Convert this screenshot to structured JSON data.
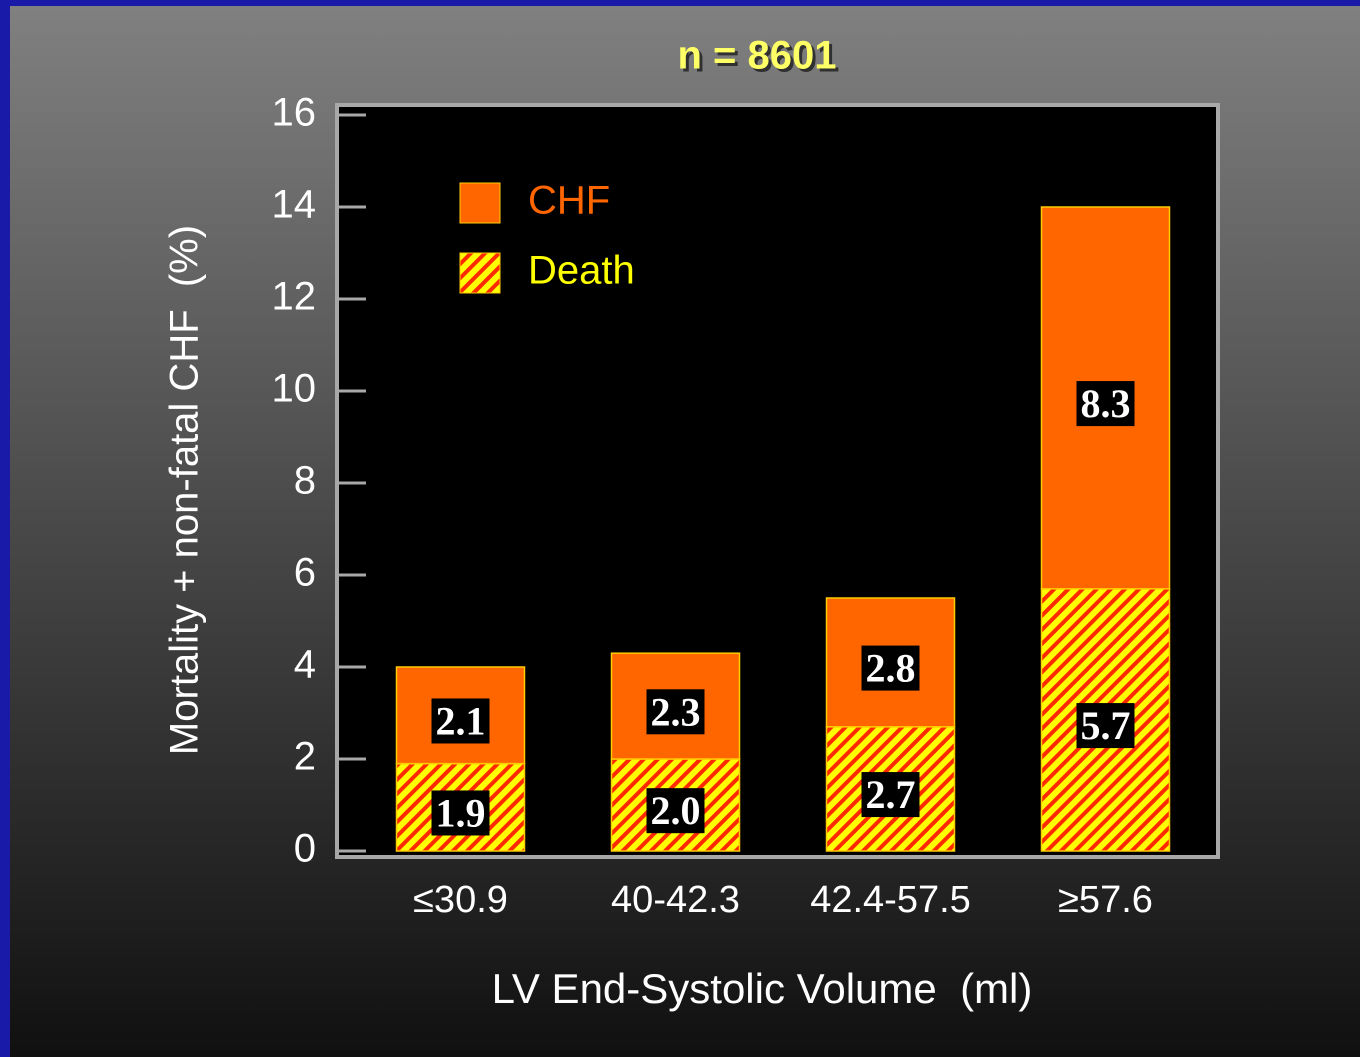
{
  "chart_data": {
    "type": "bar",
    "stacked": true,
    "title": "n = 8601",
    "xlabel": "LV End-Systolic Volume  (ml)",
    "ylabel": "Mortality + non-fatal CHF  (%)",
    "categories": [
      "≤30.9",
      "40-42.3",
      "42.4-57.5",
      "≥57.6"
    ],
    "series": [
      {
        "name": "Death",
        "color": "#ffff00",
        "hatch": "#ff2a00",
        "values": [
          1.9,
          2.0,
          2.7,
          5.7
        ],
        "value_labels": [
          "1.9",
          "2.0",
          "2.7",
          "5.7"
        ]
      },
      {
        "name": "CHF",
        "color": "#ff6600",
        "values": [
          2.1,
          2.3,
          2.8,
          8.3
        ]
      }
    ],
    "ylim": [
      0,
      16
    ],
    "yticks": [
      0,
      2,
      4,
      6,
      8,
      10,
      12,
      14,
      16
    ]
  }
}
